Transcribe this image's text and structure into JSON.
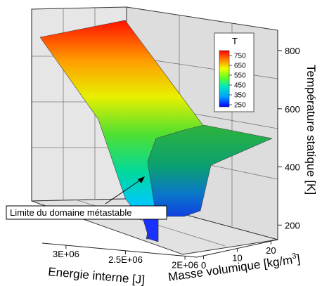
{
  "chart_data": {
    "type": "surface",
    "z_axis": {
      "label": "Température statique [K]",
      "ticks": [
        {
          "label": "800",
          "value": 800
        },
        {
          "label": "600",
          "value": 600
        },
        {
          "label": "400",
          "value": 400
        },
        {
          "label": "200",
          "value": 200
        }
      ]
    },
    "x_axis": {
      "label": "Energie interne [J]",
      "ticks": [
        {
          "label": "3E+06",
          "value": 3000000
        },
        {
          "label": "2.5E+06",
          "value": 2500000
        },
        {
          "label": "2E+06",
          "value": 2000000
        }
      ]
    },
    "y_axis": {
      "label_main": "Masse volumique [kg/m",
      "label_sup": "3",
      "label_end": "]",
      "ticks": [
        {
          "label": "0",
          "value": 0
        },
        {
          "label": "10",
          "value": 10
        },
        {
          "label": "20",
          "value": 20
        }
      ]
    },
    "legend": {
      "title": "T",
      "levels": [
        "750",
        "650",
        "550",
        "450",
        "350",
        "250"
      ],
      "range": [
        250,
        800
      ],
      "placement": "top-right"
    },
    "annotation": {
      "text": "Limite du domaine métastable"
    },
    "colorscale": [
      "#0000ff",
      "#00c8ff",
      "#00ff80",
      "#80ff00",
      "#ffff00",
      "#ff8000",
      "#ff0000"
    ],
    "grid": true
  }
}
